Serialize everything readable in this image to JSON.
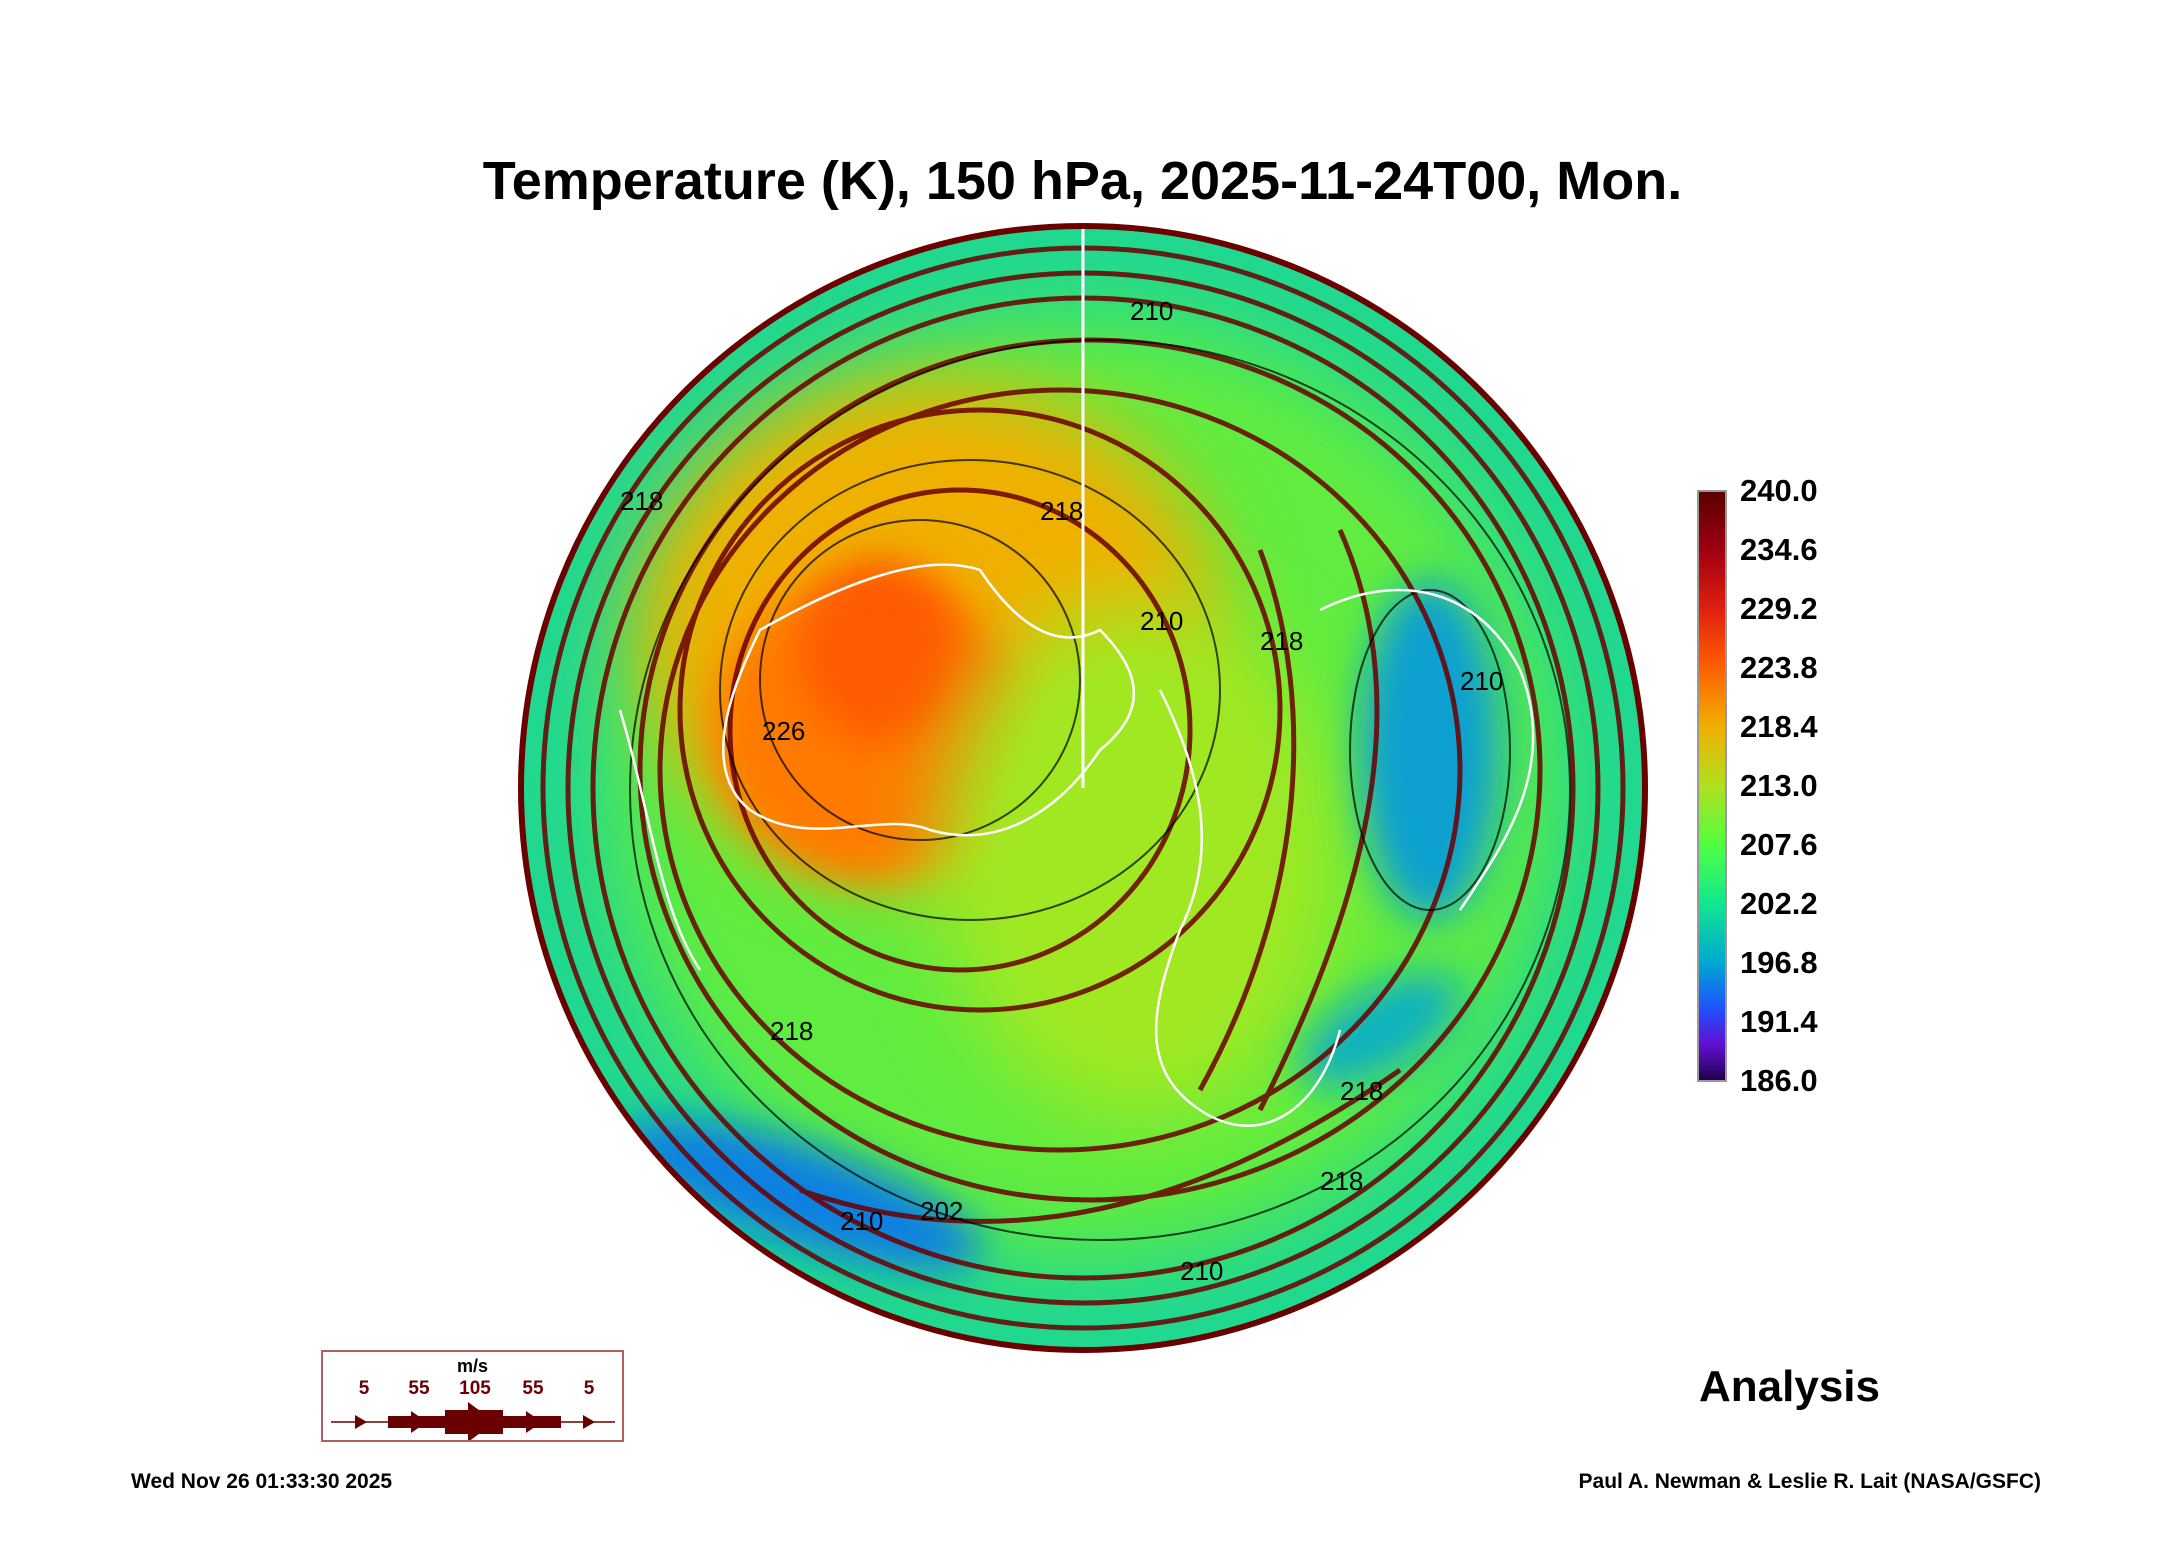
{
  "title": "Temperature (K), 150 hPa, 2025-11-24T00, Mon.",
  "chart_data": {
    "type": "heatmap",
    "projection": "north-polar-stereographic",
    "title": "Temperature (K), 150 hPa, 2025-11-24T00, Mon.",
    "colorbar": {
      "range": [
        186.0,
        240.0
      ],
      "ticks": [
        "240.0",
        "234.6",
        "229.2",
        "223.8",
        "218.4",
        "213.0",
        "207.6",
        "202.2",
        "196.8",
        "191.4",
        "186.0"
      ]
    },
    "contour_labels": [
      "210",
      "218",
      "218",
      "226",
      "218",
      "210",
      "218",
      "218",
      "210",
      "218",
      "202",
      "210",
      "210"
    ]
  },
  "legend": {
    "unit": "m/s",
    "values": [
      "5",
      "55",
      "105",
      "55",
      "5"
    ]
  },
  "analysis_label": "Analysis",
  "footer": {
    "timestamp": "Wed Nov 26 01:33:30 2025",
    "credit": "Paul A. Newman & Leslie R. Lait (NASA/GSFC)"
  }
}
